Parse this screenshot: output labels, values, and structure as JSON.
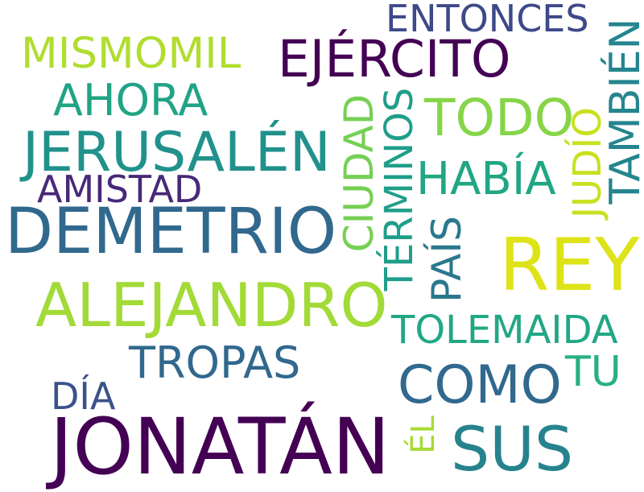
{
  "words": [
    {
      "text": "JONATÁN",
      "color": "#440154"
    },
    {
      "text": "DEMETRIO",
      "color": "#31688e"
    },
    {
      "text": "REY",
      "color": "#dde318"
    },
    {
      "text": "ALEJANDRO",
      "color": "#a2da37"
    },
    {
      "text": "JERUSALÉN",
      "color": "#21918c"
    },
    {
      "text": "SUS",
      "color": "#26838e"
    },
    {
      "text": "EJÉRCITO",
      "color": "#440154"
    },
    {
      "text": "COMO",
      "color": "#31688e"
    },
    {
      "text": "TODO",
      "color": "#86d549"
    },
    {
      "text": "MISMOMIL",
      "color": "#b0dd2f"
    },
    {
      "text": "TOLEMAIDA",
      "color": "#22a785"
    },
    {
      "text": "TROPAS",
      "color": "#31688e"
    },
    {
      "text": "AHORA",
      "color": "#20a386"
    },
    {
      "text": "HABÍA",
      "color": "#21a685"
    },
    {
      "text": "TÉRMINOS",
      "color": "#1f9e89"
    },
    {
      "text": "CIUDAD",
      "color": "#75d054"
    },
    {
      "text": "PAÍS",
      "color": "#2a788e"
    },
    {
      "text": "JUDÍO",
      "color": "#c8e020"
    },
    {
      "text": "TAMBIÉN",
      "color": "#25858e"
    },
    {
      "text": "TU",
      "color": "#2ab07f"
    },
    {
      "text": "AMISTAD",
      "color": "#482878"
    },
    {
      "text": "ENTONCES",
      "color": "#3e4989"
    },
    {
      "text": "DÍA",
      "color": "#3b528b"
    },
    {
      "text": "ÉL",
      "color": "#a8db34"
    }
  ]
}
